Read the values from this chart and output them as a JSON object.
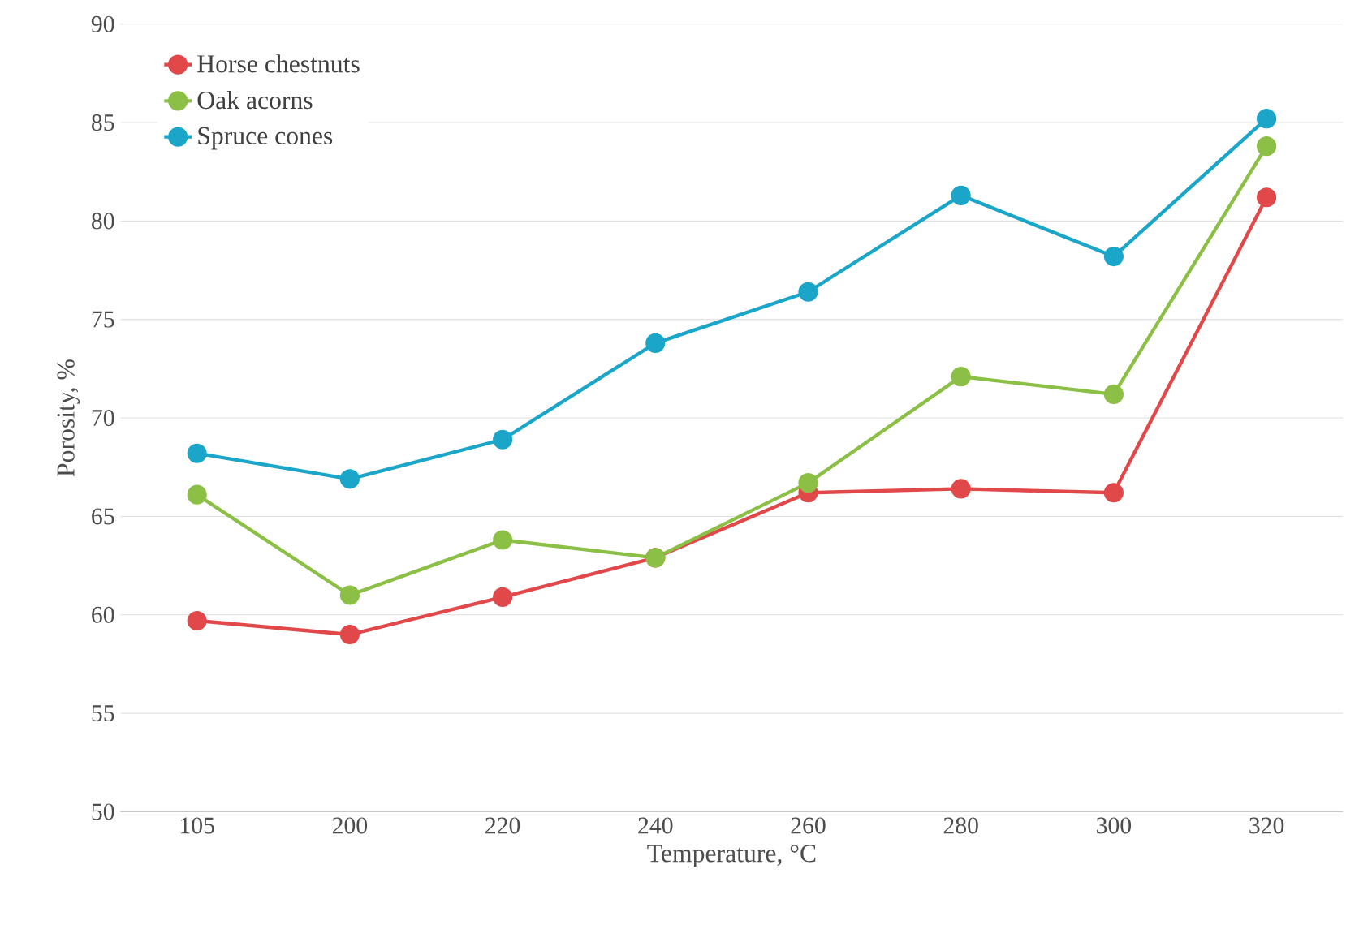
{
  "chart_data": {
    "type": "line",
    "xlabel": "Temperature, °C",
    "ylabel": "Porosity, %",
    "categories": [
      "105",
      "200",
      "220",
      "240",
      "260",
      "280",
      "300",
      "320"
    ],
    "series": [
      {
        "name": "Horse chestnuts",
        "color": "#e0484a",
        "values": [
          59.7,
          59.0,
          60.9,
          62.9,
          66.2,
          66.4,
          66.2,
          81.2
        ]
      },
      {
        "name": "Oak acorns",
        "color": "#8cbf45",
        "values": [
          66.1,
          61.0,
          63.8,
          62.9,
          66.7,
          72.1,
          71.2,
          83.8
        ]
      },
      {
        "name": "Spruce cones",
        "color": "#1ba6c9",
        "values": [
          68.2,
          66.9,
          68.9,
          73.8,
          76.4,
          81.3,
          78.2,
          85.2
        ]
      }
    ],
    "ylim": [
      50,
      90
    ],
    "yticks": [
      50,
      55,
      60,
      65,
      70,
      75,
      80,
      85,
      90
    ],
    "grid": "y",
    "legend": "top left",
    "marker": "circle",
    "line_style": "solid"
  }
}
